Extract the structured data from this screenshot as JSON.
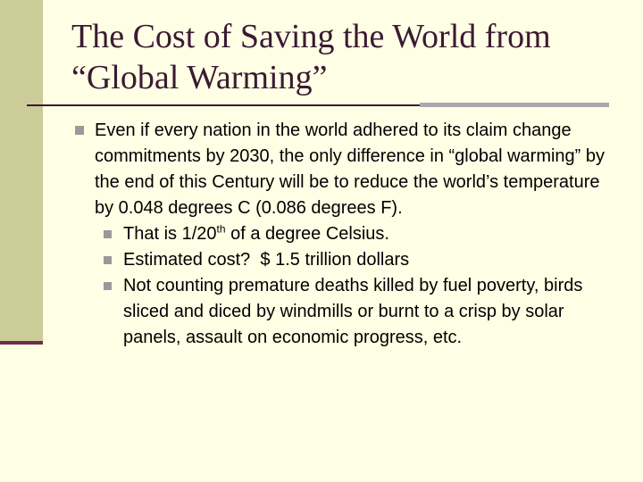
{
  "slide": {
    "title_line1": "The Cost of Saving the World from",
    "title_line2": "“Global Warming”",
    "main_bullet": "Even if every nation in the world adhered to its claim change commitments by 2030, the only difference in “global warming” by the end of this Century will be to reduce the world’s temperature by 0.048 degrees C (0.086 degrees F).",
    "sub_bullets": [
      {
        "text_before": "That is 1/20",
        "superscript": "th",
        "text_after": " of a degree Celsius."
      },
      {
        "text": "Estimated cost?  $ 1.5 trillion dollars"
      },
      {
        "text": "Not counting premature deaths killed by fuel poverty, birds sliced and diced by windmills or burnt to a crisp by solar panels, assault on economic progress, etc."
      }
    ]
  },
  "colors": {
    "background": "#FFFFE5",
    "left_band": "#CCCC99",
    "accent_dark": "#6B2D4D",
    "title_text": "#3B1A33",
    "rule_grey": "#A9A9B6",
    "bullet_marker": "#999999"
  },
  "icons": {
    "bullet": "square-bullet-icon"
  }
}
